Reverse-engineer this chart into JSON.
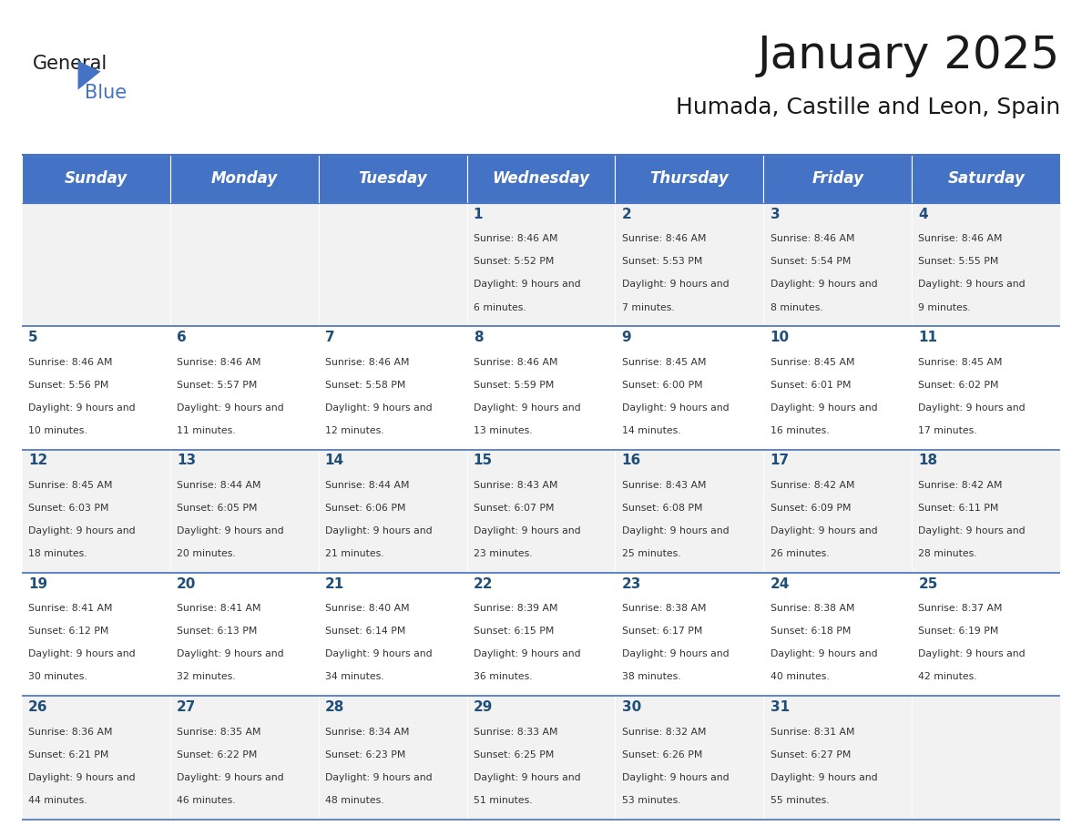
{
  "title": "January 2025",
  "subtitle": "Humada, Castille and Leon, Spain",
  "days_of_week": [
    "Sunday",
    "Monday",
    "Tuesday",
    "Wednesday",
    "Thursday",
    "Friday",
    "Saturday"
  ],
  "header_bg": "#4472C4",
  "header_text": "#FFFFFF",
  "row_bg_odd": "#FFFFFF",
  "row_bg_even": "#F2F2F2",
  "cell_text_color": "#333333",
  "day_num_color": "#1F4E79",
  "border_color": "#4472C4",
  "calendar": [
    [
      {
        "day": null,
        "sunrise": null,
        "sunset": null,
        "daylight": null
      },
      {
        "day": null,
        "sunrise": null,
        "sunset": null,
        "daylight": null
      },
      {
        "day": null,
        "sunrise": null,
        "sunset": null,
        "daylight": null
      },
      {
        "day": 1,
        "sunrise": "8:46 AM",
        "sunset": "5:52 PM",
        "daylight": "9 hours and 6 minutes."
      },
      {
        "day": 2,
        "sunrise": "8:46 AM",
        "sunset": "5:53 PM",
        "daylight": "9 hours and 7 minutes."
      },
      {
        "day": 3,
        "sunrise": "8:46 AM",
        "sunset": "5:54 PM",
        "daylight": "9 hours and 8 minutes."
      },
      {
        "day": 4,
        "sunrise": "8:46 AM",
        "sunset": "5:55 PM",
        "daylight": "9 hours and 9 minutes."
      }
    ],
    [
      {
        "day": 5,
        "sunrise": "8:46 AM",
        "sunset": "5:56 PM",
        "daylight": "9 hours and 10 minutes."
      },
      {
        "day": 6,
        "sunrise": "8:46 AM",
        "sunset": "5:57 PM",
        "daylight": "9 hours and 11 minutes."
      },
      {
        "day": 7,
        "sunrise": "8:46 AM",
        "sunset": "5:58 PM",
        "daylight": "9 hours and 12 minutes."
      },
      {
        "day": 8,
        "sunrise": "8:46 AM",
        "sunset": "5:59 PM",
        "daylight": "9 hours and 13 minutes."
      },
      {
        "day": 9,
        "sunrise": "8:45 AM",
        "sunset": "6:00 PM",
        "daylight": "9 hours and 14 minutes."
      },
      {
        "day": 10,
        "sunrise": "8:45 AM",
        "sunset": "6:01 PM",
        "daylight": "9 hours and 16 minutes."
      },
      {
        "day": 11,
        "sunrise": "8:45 AM",
        "sunset": "6:02 PM",
        "daylight": "9 hours and 17 minutes."
      }
    ],
    [
      {
        "day": 12,
        "sunrise": "8:45 AM",
        "sunset": "6:03 PM",
        "daylight": "9 hours and 18 minutes."
      },
      {
        "day": 13,
        "sunrise": "8:44 AM",
        "sunset": "6:05 PM",
        "daylight": "9 hours and 20 minutes."
      },
      {
        "day": 14,
        "sunrise": "8:44 AM",
        "sunset": "6:06 PM",
        "daylight": "9 hours and 21 minutes."
      },
      {
        "day": 15,
        "sunrise": "8:43 AM",
        "sunset": "6:07 PM",
        "daylight": "9 hours and 23 minutes."
      },
      {
        "day": 16,
        "sunrise": "8:43 AM",
        "sunset": "6:08 PM",
        "daylight": "9 hours and 25 minutes."
      },
      {
        "day": 17,
        "sunrise": "8:42 AM",
        "sunset": "6:09 PM",
        "daylight": "9 hours and 26 minutes."
      },
      {
        "day": 18,
        "sunrise": "8:42 AM",
        "sunset": "6:11 PM",
        "daylight": "9 hours and 28 minutes."
      }
    ],
    [
      {
        "day": 19,
        "sunrise": "8:41 AM",
        "sunset": "6:12 PM",
        "daylight": "9 hours and 30 minutes."
      },
      {
        "day": 20,
        "sunrise": "8:41 AM",
        "sunset": "6:13 PM",
        "daylight": "9 hours and 32 minutes."
      },
      {
        "day": 21,
        "sunrise": "8:40 AM",
        "sunset": "6:14 PM",
        "daylight": "9 hours and 34 minutes."
      },
      {
        "day": 22,
        "sunrise": "8:39 AM",
        "sunset": "6:15 PM",
        "daylight": "9 hours and 36 minutes."
      },
      {
        "day": 23,
        "sunrise": "8:38 AM",
        "sunset": "6:17 PM",
        "daylight": "9 hours and 38 minutes."
      },
      {
        "day": 24,
        "sunrise": "8:38 AM",
        "sunset": "6:18 PM",
        "daylight": "9 hours and 40 minutes."
      },
      {
        "day": 25,
        "sunrise": "8:37 AM",
        "sunset": "6:19 PM",
        "daylight": "9 hours and 42 minutes."
      }
    ],
    [
      {
        "day": 26,
        "sunrise": "8:36 AM",
        "sunset": "6:21 PM",
        "daylight": "9 hours and 44 minutes."
      },
      {
        "day": 27,
        "sunrise": "8:35 AM",
        "sunset": "6:22 PM",
        "daylight": "9 hours and 46 minutes."
      },
      {
        "day": 28,
        "sunrise": "8:34 AM",
        "sunset": "6:23 PM",
        "daylight": "9 hours and 48 minutes."
      },
      {
        "day": 29,
        "sunrise": "8:33 AM",
        "sunset": "6:25 PM",
        "daylight": "9 hours and 51 minutes."
      },
      {
        "day": 30,
        "sunrise": "8:32 AM",
        "sunset": "6:26 PM",
        "daylight": "9 hours and 53 minutes."
      },
      {
        "day": 31,
        "sunrise": "8:31 AM",
        "sunset": "6:27 PM",
        "daylight": "9 hours and 55 minutes."
      },
      {
        "day": null,
        "sunrise": null,
        "sunset": null,
        "daylight": null
      }
    ]
  ]
}
